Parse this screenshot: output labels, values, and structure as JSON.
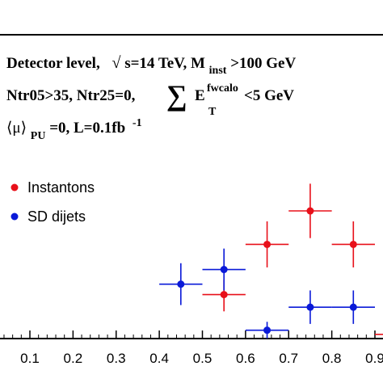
{
  "chart_data": {
    "type": "scatter",
    "annotations": {
      "line1": {
        "a": "Detector level,",
        "sqrt": "√",
        "b": "s=14 TeV,  M",
        "sub": "inst",
        "c": ">100 GeV"
      },
      "line2": {
        "a": "Ntr05>35, Ntr25=0,",
        "sum": "∑",
        "e": "E",
        "sup": "fwcalo",
        "sub": "T",
        "c": "<5 GeV"
      },
      "line3": {
        "a": "⟨μ⟩",
        "sub": "PU",
        "b": "=0, L=0.1fb",
        "sup": "-1"
      }
    },
    "x_ticks": [
      "0.1",
      "0.2",
      "0.3",
      "0.4",
      "0.5",
      "0.6",
      "0.7",
      "0.8",
      "0.9"
    ],
    "xlim": [
      0.0,
      0.95
    ],
    "ylim": [
      0,
      1
    ],
    "series": [
      {
        "name": "Instantons",
        "color": "#e8101a",
        "points": [
          {
            "x": 0.55,
            "y": 0.21,
            "xerr": 0.05,
            "yerr_up": 0.07,
            "yerr_down": 0.08
          },
          {
            "x": 0.65,
            "y": 0.45,
            "xerr": 0.05,
            "yerr_up": 0.11,
            "yerr_down": 0.11
          },
          {
            "x": 0.75,
            "y": 0.61,
            "xerr": 0.05,
            "yerr_up": 0.13,
            "yerr_down": 0.13
          },
          {
            "x": 0.85,
            "y": 0.45,
            "xerr": 0.05,
            "yerr_up": 0.11,
            "yerr_down": 0.11
          },
          {
            "x": 0.95,
            "y": 0.02,
            "xerr": 0.05,
            "yerr_up": 0.03,
            "yerr_down": 0.02
          }
        ]
      },
      {
        "name": "SD dijets",
        "color": "#0a1ad8",
        "points": [
          {
            "x": 0.45,
            "y": 0.26,
            "xerr": 0.05,
            "yerr_up": 0.1,
            "yerr_down": 0.1
          },
          {
            "x": 0.55,
            "y": 0.33,
            "xerr": 0.05,
            "yerr_up": 0.1,
            "yerr_down": 0.1
          },
          {
            "x": 0.65,
            "y": 0.04,
            "xerr": 0.05,
            "yerr_up": 0.04,
            "yerr_down": 0.04
          },
          {
            "x": 0.75,
            "y": 0.15,
            "xerr": 0.05,
            "yerr_up": 0.08,
            "yerr_down": 0.08
          },
          {
            "x": 0.85,
            "y": 0.15,
            "xerr": 0.05,
            "yerr_up": 0.08,
            "yerr_down": 0.08
          }
        ]
      }
    ],
    "legend": {
      "placement": "left",
      "entries": [
        "Instantons",
        "SD dijets"
      ]
    }
  }
}
